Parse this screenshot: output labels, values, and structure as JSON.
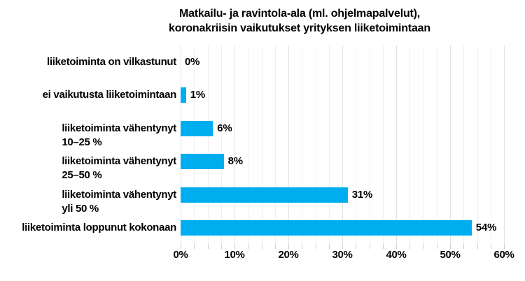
{
  "chart_data": {
    "type": "bar",
    "orientation": "horizontal",
    "title": "Matkailu- ja ravintola-ala (ml. ohjelmapalvelut),\nkoronakriisin vaikutukset yrityksen liiketoimintaan",
    "categories": [
      "liiketoiminta on vilkastunut",
      "ei vaikutusta liiketoimintaan",
      "liiketoiminta vähentynyt\n10–25 %",
      "liiketoiminta vähentynyt\n25–50 %",
      "liiketoiminta vähentynyt\nyli 50 %",
      "liiketoiminta loppunut kokonaan"
    ],
    "values": [
      0,
      1,
      6,
      8,
      31,
      54
    ],
    "data_labels": [
      "0%",
      "1%",
      "6%",
      "8%",
      "31%",
      "54%"
    ],
    "xlabel": "",
    "ylabel": "",
    "xlim": [
      0,
      60
    ],
    "x_major_ticks": [
      "0%",
      "10%",
      "20%",
      "30%",
      "40%",
      "50%",
      "60%"
    ],
    "x_major_unit": 10,
    "x_minor_unit": 2.5,
    "grid": true,
    "legend": false,
    "bar_color": "#00aeef",
    "minor_grid_color": "#efefef",
    "major_grid_color": "#e2e2e2",
    "tick_color": "#cccccc",
    "text_color": "#000000",
    "background": "#ffffff"
  }
}
